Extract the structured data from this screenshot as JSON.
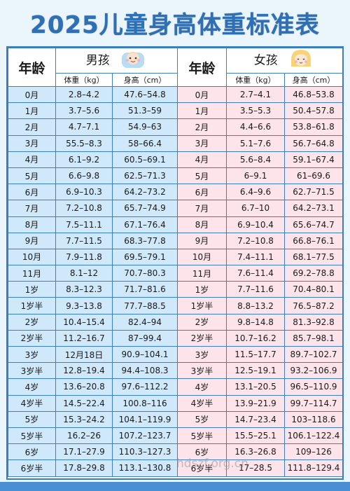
{
  "title": "2025儿童身高体重标准表",
  "headers": {
    "age": "年龄",
    "boy": "男孩",
    "girl": "女孩",
    "weight": "体重（kg）",
    "height": "身高（cm）"
  },
  "rows": [
    {
      "age": "0月",
      "bw": "2.8–4.2",
      "bh": "47.6–54.8",
      "gw": "2.7–4.1",
      "gh": "46.8–53.8"
    },
    {
      "age": "1月",
      "bw": "3.7–5.6",
      "bh": "51.3–59",
      "gw": "3.5–5.3",
      "gh": "50.4–57.8"
    },
    {
      "age": "2月",
      "bw": "4.7–7.1",
      "bh": "54.9–63",
      "gw": "4.4–6.6",
      "gh": "53.8–61.8"
    },
    {
      "age": "3月",
      "bw": "55.5–8.3",
      "bh": "58–66.4",
      "gw": "5.1–7.6",
      "gh": "56.7–64.8"
    },
    {
      "age": "4月",
      "bw": "6.1–9.2",
      "bh": "60.5–69.1",
      "gw": "5.6–8.4",
      "gh": "59.1–67.4"
    },
    {
      "age": "5月",
      "bw": "6.6–9.8",
      "bh": "62.5–71.3",
      "gw": "6–9.1",
      "gh": "61–69.6"
    },
    {
      "age": "6月",
      "bw": "6.9–10.3",
      "bh": "64.2–73.2",
      "gw": "6.4–9.6",
      "gh": "62.7–71.5"
    },
    {
      "age": "7月",
      "bw": "7.2–10.8",
      "bh": "65.7–74.9",
      "gw": "6.7–10",
      "gh": "64.2–73.1"
    },
    {
      "age": "8月",
      "bw": "7.5–11.1",
      "bh": "67.1–76.4",
      "gw": "6.9–10.4",
      "gh": "65.6–74.7"
    },
    {
      "age": "9月",
      "bw": "7.7–11.5",
      "bh": "68.3–77.8",
      "gw": "7.2–10.8",
      "gh": "66.8–76.1"
    },
    {
      "age": "10月",
      "bw": "7.9–11.8",
      "bh": "69.5–79.1",
      "gw": "7.4–11.1",
      "gh": "68.1–77.5"
    },
    {
      "age": "11月",
      "bw": "8.1–12",
      "bh": "70.7–80.3",
      "gw": "7.6–11.4",
      "gh": "69.2–78.8"
    },
    {
      "age": "1岁",
      "bw": "8.3–12.3",
      "bh": "71.7–81.6",
      "gw": "7.7–11.6",
      "gh": "70.4–80.1"
    },
    {
      "age": "1岁半",
      "bw": "9.3–13.8",
      "bh": "77.7–88.5",
      "gw": "8.8–13.2",
      "gh": "76.5–87.2"
    },
    {
      "age": "2岁",
      "bw": "10.4–15.4",
      "bh": "82.4–94",
      "gw": "9.8–14.8",
      "gh": "81.3–92.8"
    },
    {
      "age": "2岁半",
      "bw": "11.2–16.7",
      "bh": "87–99.4",
      "gw": "10.7–16.2",
      "gh": "85.7–98.1"
    },
    {
      "age": "3岁",
      "bw": "12月18日",
      "bh": "90.9–104.1",
      "gw": "11.5–17.7",
      "gh": "89.7–102.7"
    },
    {
      "age": "3岁半",
      "bw": "12.8–19.4",
      "bh": "94.4–108.3",
      "gw": "12.5–19.1",
      "gh": "93.2–106.9"
    },
    {
      "age": "4岁",
      "bw": "13.6–20.8",
      "bh": "97.6–112.2",
      "gw": "13.1–20.5",
      "gh": "96.5–110.9"
    },
    {
      "age": "4岁半",
      "bw": "14.5–22.4",
      "bh": "100.8–116",
      "gw": "13.9–21.9",
      "gh": "99.7–114.7"
    },
    {
      "age": "5岁",
      "bw": "15.3–24.2",
      "bh": "104.1–119.9",
      "gw": "14.7–23.4",
      "gh": "103–118.6"
    },
    {
      "age": "5岁半",
      "bw": "16.2–26",
      "bh": "107.2–123.7",
      "gw": "15.5–25.1",
      "gh": "106.1–122.4"
    },
    {
      "age": "6岁",
      "bw": "17.1–27.9",
      "bh": "110.3–127.3",
      "gw": "16.3–26.8",
      "gh": "109–126"
    },
    {
      "age": "6岁半",
      "bw": "17.8–29.8",
      "bh": "113.1–130.8",
      "gw": "17–28.5",
      "gh": "111.8–129.4"
    }
  ],
  "watermark": "hdszf.org.cn",
  "colors": {
    "title": "#2f6fb3",
    "boy_fill": "#cfe8fa",
    "girl_fill": "#fde3ea",
    "border": "#3d7fc2"
  }
}
